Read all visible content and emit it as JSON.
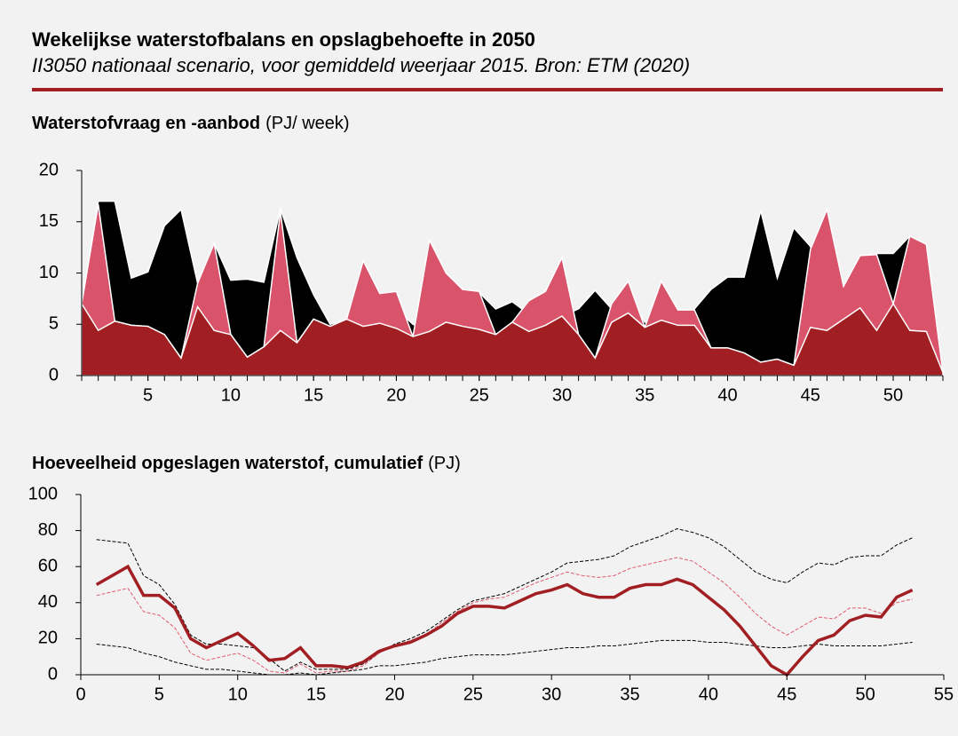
{
  "title": "Wekelijkse waterstofbalans en opslagbehoefte in 2050",
  "subtitle": "II3050 nationaal scenario, voor gemiddeld weerjaar 2015. Bron: ETM (2020)",
  "chart_data": [
    {
      "type": "area",
      "title": "Waterstofvraag en -aanbod",
      "unit": "(PJ/ week)",
      "x": [
        1,
        2,
        3,
        4,
        5,
        6,
        7,
        8,
        9,
        10,
        11,
        12,
        13,
        14,
        15,
        16,
        17,
        18,
        19,
        20,
        21,
        22,
        23,
        24,
        25,
        26,
        27,
        28,
        29,
        30,
        31,
        32,
        33,
        34,
        35,
        36,
        37,
        38,
        39,
        40,
        41,
        42,
        43,
        44,
        45,
        46,
        47,
        48,
        49,
        50,
        51,
        52,
        53
      ],
      "xlim": [
        1,
        53
      ],
      "xticks": [
        5,
        10,
        15,
        20,
        25,
        30,
        35,
        40,
        45,
        50
      ],
      "ylim": [
        0,
        20
      ],
      "yticks": [
        0,
        5,
        10,
        15,
        20
      ],
      "series": [
        {
          "color": "#000000",
          "values": [
            7,
            17,
            17,
            9.5,
            10.1,
            14.6,
            16.2,
            9,
            12.9,
            9.3,
            9.4,
            9.1,
            16.3,
            11.5,
            7.9,
            5,
            5.5,
            5.5,
            5.1,
            6.5,
            5,
            4.3,
            5.2,
            4.8,
            8.1,
            6.5,
            7.2,
            6,
            7.5,
            5.8,
            6.5,
            8.3,
            6.5,
            8,
            5.2,
            5.4,
            4.9,
            6.5,
            8.4,
            9.6,
            9.6,
            16.1,
            9.5,
            14.4,
            12.6,
            6,
            5.5,
            6.6,
            11.9,
            11.9,
            13.6,
            4.3,
            0.3
          ]
        },
        {
          "color": "#d9546b",
          "values": [
            7,
            16.7,
            5.3,
            4.9,
            4.8,
            4,
            1.7,
            9,
            12.9,
            4,
            1.8,
            2.8,
            16,
            3.2,
            5.5,
            4.8,
            5.5,
            11.2,
            8,
            8.2,
            3.8,
            13.2,
            10,
            8.4,
            8.2,
            4,
            5.2,
            7.3,
            8.2,
            11.5,
            4,
            1.7,
            7,
            9.2,
            4.7,
            9.2,
            6.4,
            6.4,
            2.7,
            2.7,
            2.2,
            1.3,
            1.6,
            1,
            12.3,
            16.2,
            8.7,
            11.7,
            11.8,
            7,
            13.6,
            12.8,
            0.3
          ]
        },
        {
          "color": "#a11f23",
          "values": [
            7,
            4.4,
            5.3,
            4.9,
            4.8,
            4,
            1.7,
            6.7,
            4.4,
            4,
            1.8,
            2.8,
            4.4,
            3.2,
            5.5,
            4.8,
            5.5,
            4.8,
            5.1,
            4.6,
            3.8,
            4.3,
            5.2,
            4.8,
            4.5,
            4,
            5.2,
            4.3,
            4.9,
            5.8,
            4,
            1.7,
            5.2,
            6.1,
            4.7,
            5.4,
            4.9,
            4.9,
            2.7,
            2.7,
            2.2,
            1.3,
            1.6,
            1,
            4.7,
            4.4,
            5.5,
            6.6,
            4.4,
            7,
            4.4,
            4.3,
            0.3
          ]
        }
      ]
    },
    {
      "type": "line",
      "title": "Hoeveelheid opgeslagen waterstof, cumulatief",
      "unit": "(PJ)",
      "x": [
        1,
        2,
        3,
        4,
        5,
        6,
        7,
        8,
        9,
        10,
        11,
        12,
        13,
        14,
        15,
        16,
        17,
        18,
        19,
        20,
        21,
        22,
        23,
        24,
        25,
        26,
        27,
        28,
        29,
        30,
        31,
        32,
        33,
        34,
        35,
        36,
        37,
        38,
        39,
        40,
        41,
        42,
        43,
        44,
        45,
        46,
        47,
        48,
        49,
        50,
        51,
        52,
        53
      ],
      "xlim": [
        0,
        55
      ],
      "xticks": [
        0,
        5,
        10,
        15,
        20,
        25,
        30,
        35,
        40,
        45,
        50,
        55
      ],
      "ylim": [
        0,
        100
      ],
      "yticks": [
        0,
        20,
        40,
        60,
        80,
        100
      ],
      "series": [
        {
          "color": "#000000",
          "dashed": true,
          "values": [
            75,
            74,
            73,
            55,
            50,
            39,
            22,
            17,
            17,
            16,
            15,
            9,
            2,
            7,
            3,
            3,
            3,
            6,
            12,
            17,
            20,
            24,
            30,
            36,
            41,
            43,
            45,
            49,
            53,
            57,
            62,
            63,
            64,
            66,
            71,
            74,
            77,
            81,
            79,
            76,
            71,
            64,
            57,
            53,
            51,
            57,
            62,
            61,
            65,
            66,
            66,
            72,
            76
          ]
        },
        {
          "color": "#000000",
          "dashed": true,
          "values": [
            17,
            16,
            15,
            12,
            10,
            7,
            5,
            3,
            3,
            2,
            1,
            0,
            0,
            1,
            0,
            1,
            2,
            3,
            5,
            5,
            6,
            7,
            9,
            10,
            11,
            11,
            11,
            12,
            13,
            14,
            15,
            15,
            16,
            16,
            17,
            18,
            19,
            19,
            19,
            18,
            18,
            17,
            16,
            15,
            15,
            16,
            17,
            16,
            16,
            16,
            16,
            17,
            18
          ]
        },
        {
          "color": "#e05a6e",
          "dashed": true,
          "values": [
            44,
            46,
            48,
            35,
            33,
            26,
            12,
            8,
            10,
            12,
            8,
            2,
            1,
            6,
            1,
            2,
            2,
            5,
            12,
            16,
            19,
            22,
            29,
            35,
            40,
            42,
            43,
            47,
            51,
            54,
            57,
            55,
            54,
            55,
            59,
            61,
            63,
            65,
            63,
            57,
            51,
            43,
            34,
            27,
            22,
            27,
            32,
            31,
            37,
            37,
            34,
            40,
            42
          ]
        },
        {
          "color": "#a11f23",
          "dashed": false,
          "values": [
            50,
            55,
            60,
            44,
            44,
            37,
            20,
            15,
            19,
            23,
            16,
            8,
            9,
            15,
            5,
            5,
            4,
            7,
            13,
            16,
            18,
            22,
            27,
            34,
            38,
            38,
            37,
            41,
            45,
            47,
            50,
            45,
            43,
            43,
            48,
            50,
            50,
            53,
            50,
            43,
            36,
            27,
            16,
            5,
            0,
            10,
            19,
            22,
            30,
            33,
            32,
            43,
            47
          ]
        }
      ]
    }
  ]
}
